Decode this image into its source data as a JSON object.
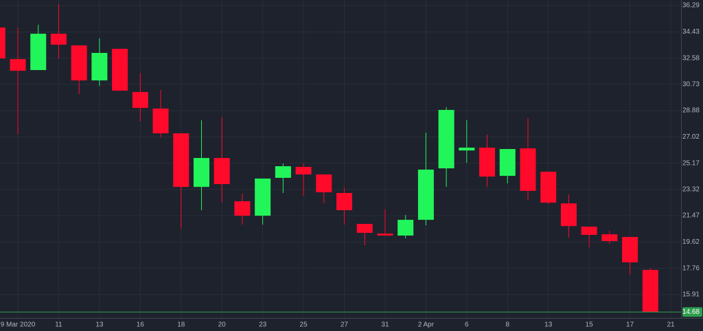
{
  "chart_data": {
    "type": "candlestick",
    "categories": [
      null,
      "9 Mar 2020",
      null,
      "11",
      null,
      "13",
      null,
      "16",
      null,
      "18",
      null,
      "20",
      null,
      "23",
      null,
      "25",
      null,
      "27",
      null,
      "31",
      null,
      "2 Apr",
      null,
      "6",
      null,
      "8",
      null,
      "13",
      null,
      "15",
      null,
      "17",
      null,
      "21"
    ],
    "open": [
      34.74,
      32.51,
      31.74,
      34.3,
      33.48,
      31.01,
      33.24,
      30.19,
      29.03,
      27.28,
      23.5,
      25.54,
      22.49,
      21.47,
      24.14,
      24.91,
      24.38,
      23.07,
      20.89,
      20.21,
      20.07,
      21.18,
      24.81,
      26.07,
      26.27,
      24.28,
      26.22,
      24.57,
      22.34,
      20.7,
      20.16,
      19.97,
      17.65,
      null
    ],
    "high": [
      34.74,
      34.74,
      34.93,
      36.39,
      33.48,
      33.97,
      33.24,
      31.54,
      30.33,
      27.28,
      28.2,
      28.45,
      23.02,
      24.09,
      25.15,
      25.15,
      24.38,
      23.46,
      20.89,
      21.91,
      21.52,
      27.33,
      29.12,
      28.2,
      27.19,
      26.17,
      28.35,
      24.57,
      22.97,
      20.7,
      20.41,
      19.97,
      17.79,
      null
    ],
    "low": [
      32.56,
      27.23,
      31.74,
      32.56,
      30.04,
      30.62,
      30.24,
      28.11,
      26.99,
      20.55,
      21.86,
      22.39,
      20.84,
      20.84,
      23.07,
      22.88,
      22.34,
      20.84,
      19.39,
      20.07,
      19.87,
      20.79,
      23.5,
      25.2,
      23.5,
      23.75,
      22.54,
      22.3,
      19.92,
      19.25,
      19.49,
      17.31,
      14.68,
      null
    ],
    "close": [
      32.56,
      31.69,
      34.3,
      33.53,
      31.01,
      32.95,
      30.29,
      29.07,
      27.28,
      23.5,
      25.54,
      23.7,
      21.47,
      24.09,
      24.96,
      24.38,
      23.12,
      21.86,
      20.26,
      20.07,
      21.18,
      24.72,
      28.93,
      26.27,
      24.23,
      26.17,
      23.22,
      22.39,
      20.74,
      20.12,
      19.68,
      18.18,
      14.68,
      null
    ],
    "up_color": "#22f55a",
    "down_color": "#ff0a2a",
    "ylim": [
      14.26,
      36.68
    ],
    "yticks": [
      36.29,
      34.43,
      32.58,
      30.73,
      28.88,
      27.02,
      25.17,
      23.32,
      21.47,
      19.62,
      17.76,
      15.91
    ],
    "last_price": 14.68,
    "last_price_color": "#2e9e4f",
    "grid": true
  }
}
